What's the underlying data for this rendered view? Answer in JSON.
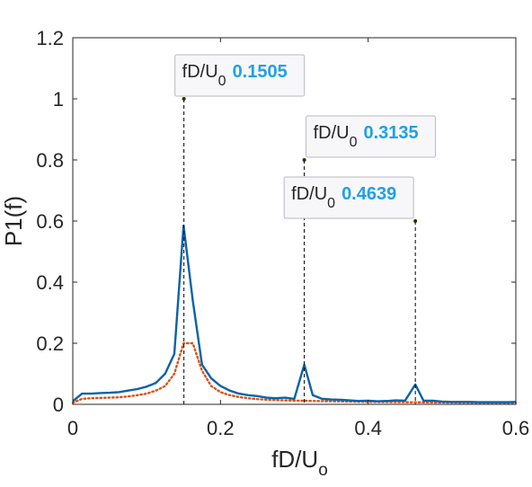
{
  "chart_data": {
    "type": "line",
    "xlabel": "fD/U",
    "xlabel_sub": "o",
    "ylabel": "P1(f)",
    "xlim": [
      0,
      0.6
    ],
    "ylim": [
      0,
      1.2
    ],
    "xticks": [
      0,
      0.2,
      0.4,
      0.6
    ],
    "xtick_labels": [
      "0",
      "0.2",
      "0.4",
      "0.6"
    ],
    "yticks": [
      0,
      0.2,
      0.4,
      0.6,
      0.8,
      1,
      1.2
    ],
    "ytick_labels": [
      "0",
      "0.2",
      "0.4",
      "0.6",
      "0.8",
      "1",
      "1.2"
    ],
    "grid": false,
    "series": [
      {
        "color": "#0b62a8",
        "style": "solid",
        "x": [
          0,
          0.0125,
          0.025,
          0.0375,
          0.05,
          0.0625,
          0.075,
          0.0875,
          0.1,
          0.1125,
          0.125,
          0.1375,
          0.15,
          0.1625,
          0.175,
          0.1875,
          0.2,
          0.2125,
          0.225,
          0.2375,
          0.25,
          0.2625,
          0.275,
          0.2875,
          0.3,
          0.3135,
          0.325,
          0.3375,
          0.35,
          0.3625,
          0.375,
          0.3875,
          0.4,
          0.4125,
          0.425,
          0.4375,
          0.45,
          0.4639,
          0.475,
          0.4875,
          0.5,
          0.5125,
          0.525,
          0.5375,
          0.55,
          0.5625,
          0.575,
          0.5875,
          0.6
        ],
        "y": [
          0.01,
          0.035,
          0.035,
          0.037,
          0.038,
          0.04,
          0.045,
          0.05,
          0.058,
          0.07,
          0.1,
          0.165,
          0.585,
          0.34,
          0.13,
          0.085,
          0.06,
          0.045,
          0.035,
          0.03,
          0.027,
          0.022,
          0.02,
          0.022,
          0.018,
          0.13,
          0.03,
          0.018,
          0.016,
          0.015,
          0.013,
          0.011,
          0.012,
          0.01,
          0.011,
          0.013,
          0.012,
          0.065,
          0.012,
          0.012,
          0.009,
          0.008,
          0.008,
          0.008,
          0.007,
          0.007,
          0.007,
          0.007,
          0.008
        ]
      },
      {
        "color": "#d95319",
        "style": "dotted",
        "x": [
          0,
          0.0125,
          0.025,
          0.0375,
          0.05,
          0.0625,
          0.075,
          0.0875,
          0.1,
          0.1125,
          0.125,
          0.1375,
          0.15,
          0.1625,
          0.175,
          0.1875,
          0.2,
          0.2125,
          0.225,
          0.2375,
          0.25,
          0.2625,
          0.275,
          0.2875,
          0.3,
          0.3125,
          0.325,
          0.35,
          0.375,
          0.4,
          0.45,
          0.5,
          0.55,
          0.6
        ],
        "y": [
          0.005,
          0.018,
          0.02,
          0.021,
          0.022,
          0.023,
          0.026,
          0.03,
          0.035,
          0.045,
          0.06,
          0.1,
          0.2,
          0.2,
          0.11,
          0.06,
          0.04,
          0.03,
          0.024,
          0.02,
          0.017,
          0.015,
          0.014,
          0.013,
          0.012,
          0.012,
          0.011,
          0.01,
          0.009,
          0.008,
          0.007,
          0.006,
          0.005,
          0.005
        ]
      }
    ],
    "annotations": [
      {
        "x": 0.1505,
        "y": 1.0,
        "label": "fD/U",
        "sub": "0",
        "value": "0.1505"
      },
      {
        "x": 0.3135,
        "y": 0.8,
        "label": "fD/U",
        "sub": "0",
        "value": "0.3135"
      },
      {
        "x": 0.4639,
        "y": 0.6,
        "label": "fD/U",
        "sub": "0",
        "value": "0.4639"
      }
    ],
    "annotation_value_color": "#1fa0e8"
  }
}
